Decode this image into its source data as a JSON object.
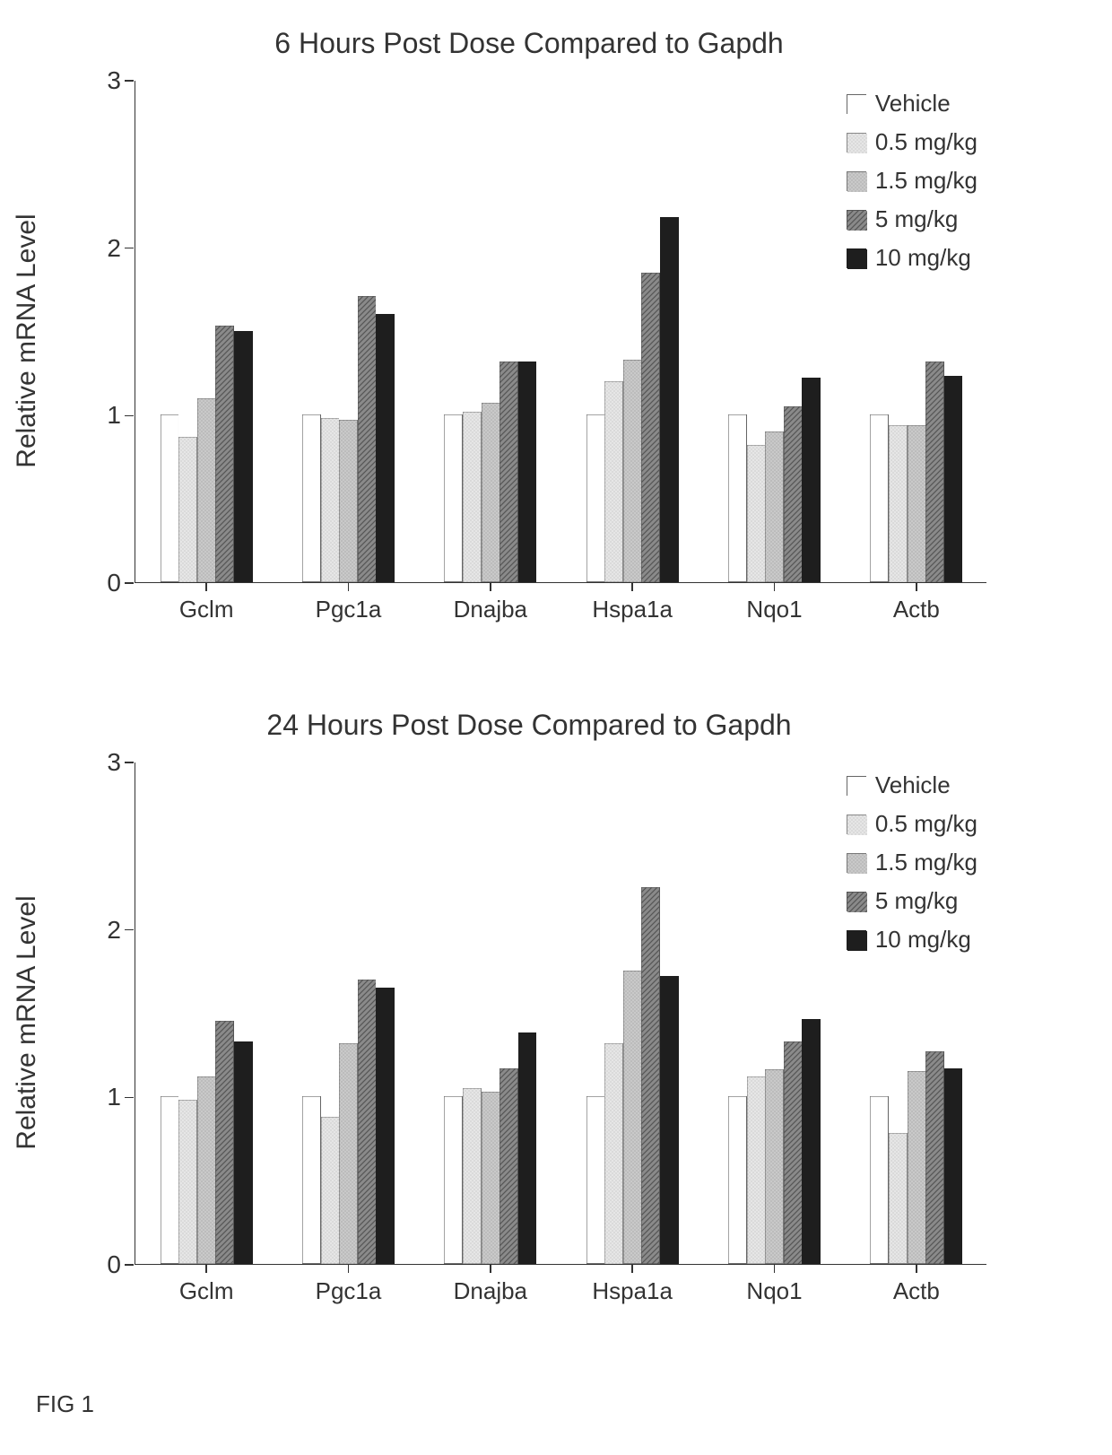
{
  "figure_label": "FIG 1",
  "charts": [
    {
      "title": "6 Hours Post Dose Compared to Gapdh",
      "ylabel": "Relative mRNA Level",
      "ylim": [
        0,
        3
      ],
      "yticks": [
        0,
        1,
        2,
        3
      ],
      "categories": [
        "Gclm",
        "Pgc1a",
        "Dnajba",
        "Hspa1a",
        "Nqo1",
        "Actb"
      ],
      "series": [
        {
          "label": "Vehicle",
          "fill": "#ffffff",
          "pattern": "none",
          "border": "#666666"
        },
        {
          "label": "0.5 mg/kg",
          "fill": "#e6e6e6",
          "pattern": "dots",
          "border": "#888888"
        },
        {
          "label": "1.5 mg/kg",
          "fill": "#c9c9c9",
          "pattern": "dots",
          "border": "#777777"
        },
        {
          "label": "5 mg/kg",
          "fill": "#8a8a8a",
          "pattern": "diag",
          "border": "#555555"
        },
        {
          "label": "10 mg/kg",
          "fill": "#1e1e1e",
          "pattern": "none",
          "border": "#1e1e1e"
        }
      ],
      "values": [
        [
          1.0,
          0.87,
          1.1,
          1.53,
          1.5
        ],
        [
          1.0,
          0.98,
          0.97,
          1.71,
          1.6
        ],
        [
          1.0,
          1.02,
          1.07,
          1.32,
          1.32
        ],
        [
          1.0,
          1.2,
          1.33,
          1.85,
          2.18
        ],
        [
          1.0,
          0.82,
          0.9,
          1.05,
          1.22
        ],
        [
          1.0,
          0.94,
          0.94,
          1.32,
          1.23
        ]
      ],
      "bar_width": 0.13,
      "group_gap": 0.35,
      "background_color": "#ffffff",
      "axis_color": "#333333",
      "title_fontsize": 32,
      "label_fontsize": 30,
      "tick_fontsize": 28
    },
    {
      "title": "24 Hours Post Dose Compared to Gapdh",
      "ylabel": "Relative mRNA Level",
      "ylim": [
        0,
        3
      ],
      "yticks": [
        0,
        1,
        2,
        3
      ],
      "categories": [
        "Gclm",
        "Pgc1a",
        "Dnajba",
        "Hspa1a",
        "Nqo1",
        "Actb"
      ],
      "series": [
        {
          "label": "Vehicle",
          "fill": "#ffffff",
          "pattern": "none",
          "border": "#666666"
        },
        {
          "label": "0.5 mg/kg",
          "fill": "#e6e6e6",
          "pattern": "dots",
          "border": "#888888"
        },
        {
          "label": "1.5 mg/kg",
          "fill": "#c9c9c9",
          "pattern": "dots",
          "border": "#777777"
        },
        {
          "label": "5 mg/kg",
          "fill": "#8a8a8a",
          "pattern": "diag",
          "border": "#555555"
        },
        {
          "label": "10 mg/kg",
          "fill": "#1e1e1e",
          "pattern": "none",
          "border": "#1e1e1e"
        }
      ],
      "values": [
        [
          1.0,
          0.98,
          1.12,
          1.45,
          1.33
        ],
        [
          1.0,
          0.88,
          1.32,
          1.7,
          1.65
        ],
        [
          1.0,
          1.05,
          1.03,
          1.17,
          1.38
        ],
        [
          1.0,
          1.32,
          1.75,
          2.25,
          1.72
        ],
        [
          1.0,
          1.12,
          1.16,
          1.33,
          1.46
        ],
        [
          1.0,
          0.78,
          1.15,
          1.27,
          1.17
        ]
      ],
      "bar_width": 0.13,
      "group_gap": 0.35,
      "background_color": "#ffffff",
      "axis_color": "#333333",
      "title_fontsize": 32,
      "label_fontsize": 30,
      "tick_fontsize": 28
    }
  ]
}
